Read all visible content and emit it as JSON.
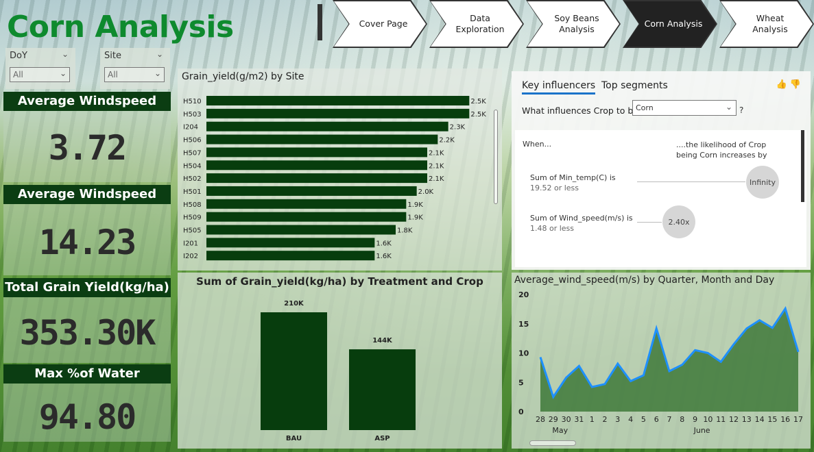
{
  "page": {
    "title": "Corn Analysis"
  },
  "nav": {
    "items": [
      {
        "label": "Cover Page",
        "active": false
      },
      {
        "label": "Data Exploration",
        "active": false
      },
      {
        "label": "Soy Beans Analysis",
        "active": false
      },
      {
        "label": "Corn Analysis",
        "active": true
      },
      {
        "label": "Wheat Analysis",
        "active": false
      }
    ]
  },
  "slicers": [
    {
      "label": "DoY",
      "value": "All"
    },
    {
      "label": "Site",
      "value": "All"
    }
  ],
  "kpis": [
    {
      "label": "Average Windspeed",
      "value": "3.72"
    },
    {
      "label": "Average Windspeed",
      "value": "14.23"
    },
    {
      "label": "Total Grain Yield(kg/ha)",
      "value": "353.30K"
    },
    {
      "label": "Max %of Water",
      "value": "94.80"
    }
  ],
  "colors": {
    "bar": "#073d0d",
    "line": "#1e90ff",
    "area": "#2f6e2a",
    "accent_title": "#0e8a2e"
  },
  "site_chart": {
    "title": "Grain_yield(g/m2) by Site",
    "chart_data": {
      "type": "bar",
      "orientation": "horizontal",
      "categories": [
        "H510",
        "H503",
        "I204",
        "H506",
        "H507",
        "H504",
        "H502",
        "H501",
        "H508",
        "H509",
        "H505",
        "I201",
        "I202"
      ],
      "values": [
        2.5,
        2.5,
        2.3,
        2.2,
        2.1,
        2.1,
        2.1,
        2.0,
        1.9,
        1.9,
        1.8,
        1.6,
        1.6
      ],
      "labels": [
        "2.5K",
        "2.5K",
        "2.3K",
        "2.2K",
        "2.1K",
        "2.1K",
        "2.1K",
        "2.0K",
        "1.9K",
        "1.9K",
        "1.8K",
        "1.6K",
        "1.6K"
      ],
      "unit": "K",
      "xlim": [
        0,
        2.55
      ]
    }
  },
  "treatment_chart": {
    "title": "Sum of Grain_yield(kg/ha) by Treatment and Crop",
    "chart_data": {
      "type": "bar",
      "categories": [
        "BAU",
        "ASP"
      ],
      "values": [
        210,
        144
      ],
      "labels": [
        "210K",
        "144K"
      ],
      "ylim": [
        0,
        210
      ]
    }
  },
  "wind_chart": {
    "title": "Average_wind_speed(m/s) by Quarter, Month and Day",
    "chart_data": {
      "type": "area",
      "x": [
        "28",
        "29",
        "30",
        "31",
        "1",
        "2",
        "3",
        "4",
        "5",
        "6",
        "7",
        "8",
        "9",
        "10",
        "11",
        "12",
        "13",
        "14",
        "15",
        "16",
        "17"
      ],
      "values": [
        9.3,
        2.5,
        5.8,
        7.8,
        4.2,
        4.7,
        8.2,
        5.2,
        6.2,
        14.2,
        6.9,
        8.0,
        10.5,
        10.0,
        8.5,
        11.5,
        14.2,
        15.6,
        14.3,
        17.6,
        10.2
      ],
      "month_labels": [
        {
          "label": "May",
          "at": 1
        },
        {
          "label": "June",
          "at": 12
        }
      ],
      "yticks": [
        "0",
        "5",
        "10",
        "15",
        "20"
      ],
      "ylim": [
        0,
        20
      ]
    }
  },
  "influencers": {
    "tab_key": "Key influencers",
    "tab_top": "Top segments",
    "question": "What influences Crop to be",
    "select_value": "Corn",
    "qmark": "?",
    "when": "When...",
    "likelihood": "....the likelihood of Crop being Corn increases by",
    "rows": [
      {
        "cond": "Sum of Min_temp(C) is",
        "sub": "19.52 or less",
        "value": "Infinity"
      },
      {
        "cond": "Sum of Wind_speed(m/s) is",
        "sub": "1.48 or less",
        "value": "2.40x"
      }
    ]
  }
}
